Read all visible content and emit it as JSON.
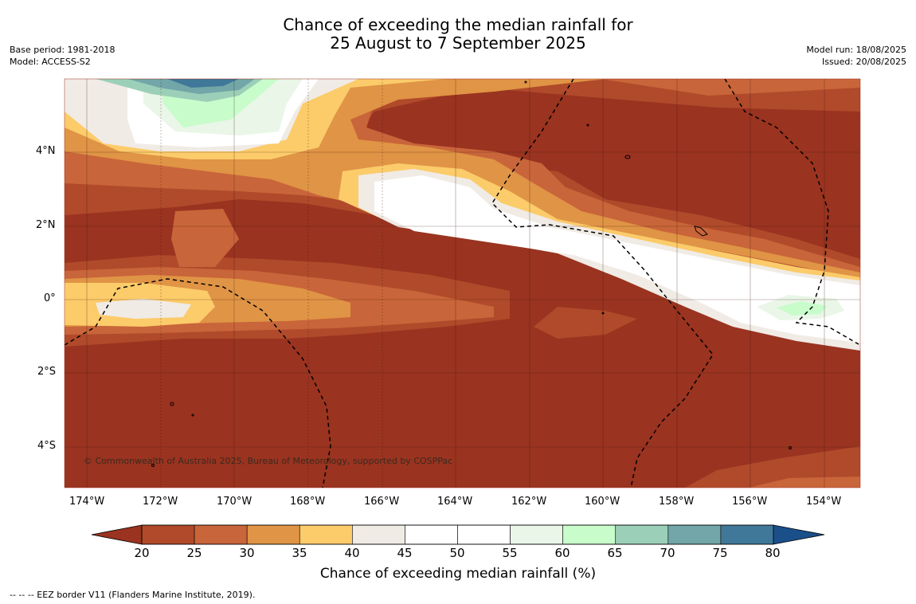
{
  "title_line1": "Chance of exceeding the median rainfall for",
  "title_line2": "25 August to 7 September 2025",
  "left_meta": [
    "Base period: 1981-2018",
    "Model: ACCESS-S2"
  ],
  "right_meta": [
    "Model run: 18/08/2025",
    "Issued: 20/08/2025"
  ],
  "lon_labels": [
    "174°W",
    "172°W",
    "170°W",
    "168°W",
    "166°W",
    "164°W",
    "162°W",
    "160°W",
    "158°W",
    "156°W",
    "154°W"
  ],
  "lat_labels": [
    "4°N",
    "2°N",
    "0°",
    "2°S",
    "4°S"
  ],
  "copyright": "© Commonwealth of Australia 2025, Bureau of Meteorology, supported by COSPPac",
  "colorbar": {
    "title": "Chance of exceeding median rainfall (%)",
    "ticks": [
      "20",
      "25",
      "30",
      "35",
      "40",
      "45",
      "50",
      "55",
      "60",
      "65",
      "70",
      "75",
      "80"
    ],
    "colors": [
      "#9a3320",
      "#b04a2a",
      "#c9653a",
      "#e09445",
      "#fccb6a",
      "#f0ebe5",
      "#ffffff",
      "#ffffff",
      "#eaf6e8",
      "#c8fccb",
      "#9ccfb8",
      "#72a6a8",
      "#3f7898",
      "#1a4f8a"
    ]
  },
  "footer": "--  --  -- EEZ border V11 (Flanders Marine Institute, 2019).",
  "chart_data": {
    "type": "map",
    "variable": "Chance of exceeding median rainfall (%)",
    "lon_range": [
      "175°W",
      "153°W"
    ],
    "lat_range": [
      "5°S",
      "6°N"
    ],
    "features": [
      {
        "name": "high-probability band",
        "from": "166°W 3°N",
        "to": "153°W 1°S",
        "max_percent": 65
      },
      {
        "name": "northern wet patch",
        "near": "170°W 5°N",
        "max_percent": 75
      },
      {
        "name": "dry region south",
        "extent": "south of 1°S",
        "percent": "<20"
      }
    ]
  }
}
